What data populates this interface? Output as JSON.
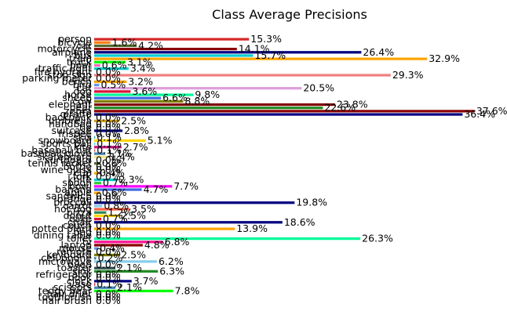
{
  "chart_data": {
    "type": "bar",
    "orientation": "horizontal",
    "title": "Class Average Precisions",
    "xlabel": "",
    "ylabel": "",
    "xlim": [
      0,
      38
    ],
    "grid": false,
    "value_suffix": "%",
    "categories": [
      "person",
      "bicycle",
      "car",
      "motorcycle",
      "airplane",
      "bus",
      "train",
      "truck",
      "boat",
      "traffic light",
      "fire hydrant",
      "stop sign",
      "parking meter",
      "bench",
      "bird",
      "cat",
      "dog",
      "horse",
      "sheep",
      "cow",
      "elephant",
      "bear",
      "zebra",
      "giraffe",
      "backpack",
      "umbrella",
      "handbag",
      "tie",
      "suitcase",
      "frisbee",
      "skis",
      "snowboard",
      "sports ball",
      "kite",
      "baseball bat",
      "baseball glove",
      "skateboard",
      "surfboard",
      "tennis racket",
      "bottle",
      "wine glass",
      "cup",
      "fork",
      "knife",
      "spoon",
      "bowl",
      "banana",
      "apple",
      "sandwich",
      "orange",
      "broccoli",
      "carrot",
      "hot dog",
      "pizza",
      "donut",
      "cake",
      "chair",
      "couch",
      "potted plant",
      "bed",
      "dining table",
      "toilet",
      "tv",
      "laptop",
      "mouse",
      "remote",
      "keyboard",
      "cell phone",
      "microwave",
      "oven",
      "toaster",
      "sink",
      "refrigerator",
      "book",
      "clock",
      "vase",
      "scissors",
      "teddy bear",
      "hair drier",
      "toothbrush",
      "hair brush"
    ],
    "values": [
      15.3,
      1.6,
      4.2,
      14.1,
      26.4,
      15.7,
      32.9,
      3.1,
      0.6,
      3.4,
      0.0,
      29.3,
      0.0,
      3.2,
      0.5,
      20.5,
      3.6,
      9.8,
      6.6,
      8.8,
      23.8,
      22.6,
      37.6,
      36.4,
      0.0,
      2.5,
      0.0,
      0.0,
      2.8,
      0.0,
      0.1,
      5.1,
      0.1,
      2.7,
      0.1,
      1.1,
      1.4,
      0.0,
      0.6,
      0.0,
      0.0,
      0.4,
      0.0,
      2.3,
      0.7,
      7.7,
      4.7,
      0.6,
      0.0,
      0.0,
      19.8,
      0.8,
      3.5,
      1.2,
      2.5,
      0.7,
      18.6,
      0.0,
      13.9,
      0.0,
      0.0,
      26.3,
      6.8,
      4.8,
      0.4,
      0.0,
      2.5,
      0.2,
      6.2,
      0.0,
      2.1,
      6.3,
      0.0,
      0.0,
      3.7,
      0.1,
      2.1,
      7.8,
      0.0,
      0.0,
      0.0
    ],
    "colors": [
      "#d62728",
      "#ff7f0e",
      "#556b2f",
      "#8b0000",
      "#000080",
      "#00ced1",
      "#ffa500",
      "#00ff00",
      "#ff69b4",
      "#00ced1",
      "#87ceeb",
      "#f08080",
      "#1e90ff",
      "#ffa500",
      "#6495ed",
      "#dda0dd",
      "#dc143c",
      "#00fa9a",
      "#4169e1",
      "#808000",
      "#800000",
      "#228b22",
      "#8b0000",
      "#000080",
      "#00ff00",
      "#d4a017",
      "#ff0000",
      "#8fbc8f",
      "#000080",
      "#dda0dd",
      "#20b2aa",
      "#ffd700",
      "#48d1cc",
      "#c71585",
      "#cd5c5c",
      "#4682b4",
      "#f0e68c",
      "#8b4513",
      "#556b2f",
      "#dc143c",
      "#000080",
      "#ffa500",
      "#ff1493",
      "#00ced1",
      "#32cd32",
      "#ff00ff",
      "#4169e1",
      "#ffa500",
      "#008080",
      "#ff4500",
      "#000080",
      "#87ceeb",
      "#ff6347",
      "#2e8b57",
      "#ffd700",
      "#dc143c",
      "#000080",
      "#ff0000",
      "#ffa500",
      "#1e90ff",
      "#000000",
      "#00fa9a",
      "#ff1493",
      "#8b0000",
      "#6495ed",
      "#daa520",
      "#808000",
      "#4682b4",
      "#87ceeb",
      "#808080",
      "#2f4f4f",
      "#228b22",
      "#ff0000",
      "#ffa500",
      "#000080",
      "#dc143c",
      "#4682b4",
      "#00ff00",
      "#ff69b4",
      "#ff00ff",
      "#808080"
    ]
  }
}
